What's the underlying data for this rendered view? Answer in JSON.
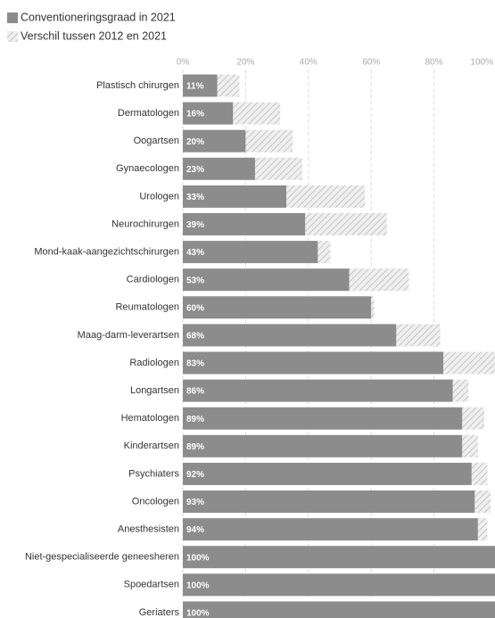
{
  "chart_data": {
    "type": "stacked-bar-horizontal",
    "categories": [
      "Plastisch chirurgen",
      "Dermatologen",
      "Oogartsen",
      "Gynaecologen",
      "Urologen",
      "Neurochirurgen",
      "Mond-kaak-aangezichtschirurgen",
      "Cardiologen",
      "Reumatologen",
      "Maag-darm-leverartsen",
      "Radiologen",
      "Longartsen",
      "Hematologen",
      "Kinderartsen",
      "Psychiaters",
      "Oncologen",
      "Anesthesisten",
      "Niet-gespecialiseerde geneesheren",
      "Spoedartsen",
      "Geriaters"
    ],
    "series": [
      {
        "name": "Conventioneringsgraad in 2021",
        "color": "#8c8c8c",
        "values": [
          11,
          16,
          20,
          23,
          33,
          39,
          43,
          53,
          60,
          68,
          83,
          86,
          89,
          89,
          92,
          93,
          94,
          100,
          100,
          100
        ],
        "value_labels": [
          "11%",
          "16%",
          "20%",
          "23%",
          "33%",
          "39%",
          "43%",
          "53%",
          "60%",
          "68%",
          "83%",
          "86%",
          "89%",
          "89%",
          "92%",
          "93%",
          "94%",
          "100%",
          "100%",
          "100%"
        ]
      },
      {
        "name": "Verschil tussen 2012 en 2021",
        "color": "#c8c8c8",
        "hatch": true,
        "values": [
          7,
          15,
          15,
          15,
          25,
          26,
          4,
          19,
          1,
          14,
          17,
          5,
          7,
          5,
          5,
          5,
          3,
          5,
          0,
          0
        ]
      }
    ],
    "xlim": [
      0,
      100
    ],
    "xticks": [
      {
        "value": 0,
        "label": "0%"
      },
      {
        "value": 20,
        "label": "20%"
      },
      {
        "value": 40,
        "label": "40%"
      },
      {
        "value": 60,
        "label": "60%"
      },
      {
        "value": 80,
        "label": "80%"
      },
      {
        "value": 100,
        "label": "100%"
      }
    ],
    "grid": true
  }
}
